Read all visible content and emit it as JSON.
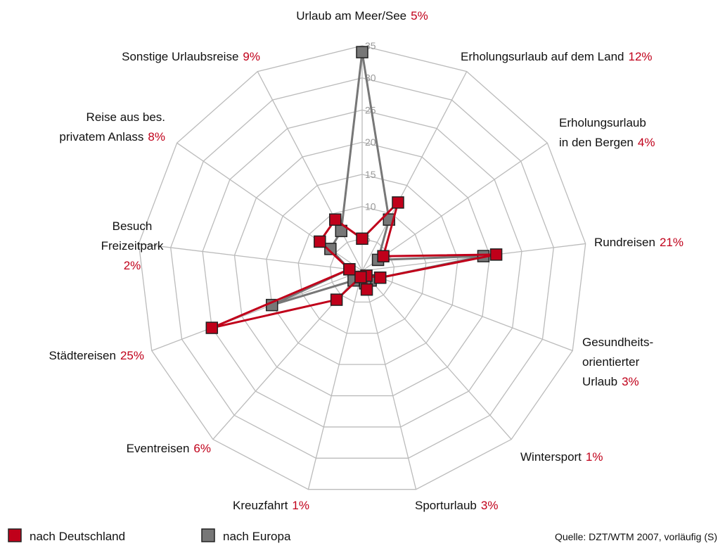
{
  "chart_data": {
    "type": "radar",
    "categories": [
      "Urlaub am Meer/See",
      "Erholungsurlaub auf dem Land",
      "Erholungsurlaub\nin den Bergen",
      "Rundreisen",
      "Gesundheits-\norientierter\nUrlaub",
      "Wintersport",
      "Sporturlaub",
      "Kreuzfahrt",
      "Eventreisen",
      "Städtereisen",
      "Besuch\nFreizeitpark",
      "Reise aus bes.\nprivatem Anlass",
      "Sonstige Urlaubsreise"
    ],
    "series": [
      {
        "name": "nach Deutschland",
        "color": "#c0001a",
        "values": [
          5,
          12,
          4,
          21,
          3,
          1,
          3,
          1,
          6,
          25,
          2,
          8,
          9
        ],
        "value_labels": [
          "5%",
          "12%",
          "4%",
          "21%",
          "3%",
          "1%",
          "3%",
          "1%",
          "6%",
          "25%",
          "2%",
          "8%",
          "9%"
        ]
      },
      {
        "name": "nach Europa",
        "color": "#777777",
        "values": [
          34,
          9,
          3,
          19,
          3,
          2,
          2,
          1,
          2,
          15,
          2,
          6,
          7
        ]
      }
    ],
    "ylim": [
      0,
      35
    ],
    "yticks": [
      5,
      10,
      15,
      20,
      25,
      30,
      35
    ],
    "source": "Quelle: DZT/WTM 2007, vorläufig (S)"
  }
}
